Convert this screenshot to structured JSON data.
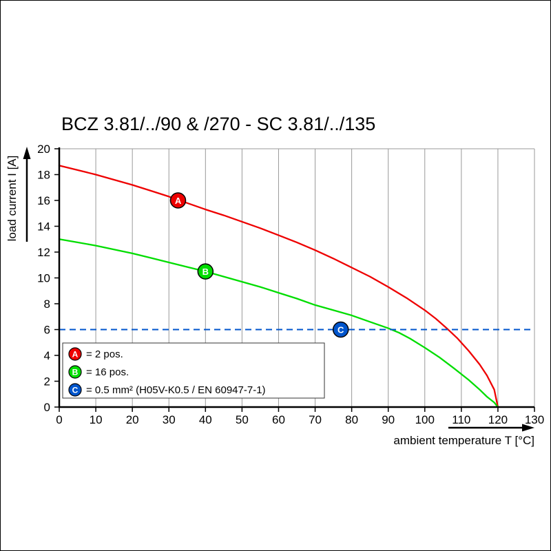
{
  "chart_data": {
    "type": "line",
    "title": "BCZ 3.81/../90 & /270 - SC 3.81/../135",
    "xlabel": "ambient temperature T [°C]",
    "ylabel": "load current I [A]",
    "xlim": [
      0,
      130
    ],
    "ylim": [
      0,
      20
    ],
    "x_ticks": [
      0,
      10,
      20,
      30,
      40,
      50,
      60,
      70,
      80,
      90,
      100,
      110,
      120,
      130
    ],
    "y_ticks": [
      0,
      2,
      4,
      6,
      8,
      10,
      12,
      14,
      16,
      18,
      20
    ],
    "grid": "vertical",
    "legend_position": "lower-left",
    "colors": {
      "grid": "#999999",
      "axis": "#000000"
    },
    "series": [
      {
        "name": "A",
        "label": "= 2 pos.",
        "color": "#ee0000",
        "marker_at": {
          "x": 32.5,
          "y": 16
        },
        "points": [
          [
            0,
            18.7
          ],
          [
            5,
            18.35
          ],
          [
            10,
            18.0
          ],
          [
            15,
            17.6
          ],
          [
            20,
            17.2
          ],
          [
            25,
            16.75
          ],
          [
            30,
            16.3
          ],
          [
            32.5,
            16.05
          ],
          [
            35,
            15.8
          ],
          [
            40,
            15.3
          ],
          [
            45,
            14.85
          ],
          [
            50,
            14.35
          ],
          [
            55,
            13.85
          ],
          [
            60,
            13.3
          ],
          [
            65,
            12.75
          ],
          [
            70,
            12.15
          ],
          [
            75,
            11.5
          ],
          [
            80,
            10.8
          ],
          [
            85,
            10.1
          ],
          [
            90,
            9.3
          ],
          [
            95,
            8.45
          ],
          [
            100,
            7.5
          ],
          [
            103,
            6.85
          ],
          [
            106,
            6.1
          ],
          [
            109,
            5.3
          ],
          [
            112,
            4.35
          ],
          [
            115,
            3.3
          ],
          [
            117,
            2.45
          ],
          [
            119,
            1.35
          ],
          [
            120,
            0
          ]
        ]
      },
      {
        "name": "B",
        "label": "= 16 pos.",
        "color": "#00dd00",
        "marker_at": {
          "x": 40,
          "y": 10.5
        },
        "points": [
          [
            0,
            13.0
          ],
          [
            5,
            12.75
          ],
          [
            10,
            12.5
          ],
          [
            15,
            12.2
          ],
          [
            20,
            11.9
          ],
          [
            25,
            11.55
          ],
          [
            30,
            11.2
          ],
          [
            35,
            10.85
          ],
          [
            40,
            10.5
          ],
          [
            45,
            10.1
          ],
          [
            50,
            9.7
          ],
          [
            55,
            9.3
          ],
          [
            60,
            8.85
          ],
          [
            65,
            8.4
          ],
          [
            70,
            7.9
          ],
          [
            75,
            7.5
          ],
          [
            80,
            7.1
          ],
          [
            85,
            6.6
          ],
          [
            90,
            6.1
          ],
          [
            93,
            5.75
          ],
          [
            96,
            5.3
          ],
          [
            100,
            4.6
          ],
          [
            104,
            3.85
          ],
          [
            108,
            3.0
          ],
          [
            112,
            2.1
          ],
          [
            115,
            1.35
          ],
          [
            117,
            0.8
          ],
          [
            119,
            0.35
          ],
          [
            120,
            0
          ]
        ]
      },
      {
        "name": "C",
        "label": "= 0.5 mm² (H05V-K0.5 / EN 60947-7-1)",
        "color": "#0055cc",
        "marker_at": {
          "x": 77,
          "y": 6
        },
        "dashed_line_y": 6
      }
    ]
  }
}
